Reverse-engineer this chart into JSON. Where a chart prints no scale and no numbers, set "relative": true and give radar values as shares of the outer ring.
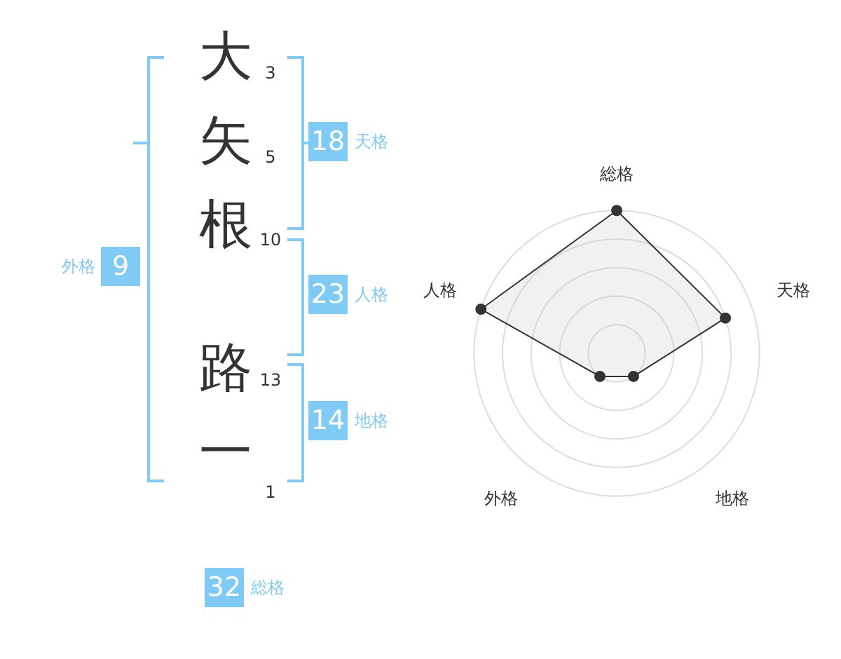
{
  "chart_data": [
    {
      "type": "other",
      "annotations": [
        "大",
        "3",
        "矢",
        "5",
        "根",
        "10",
        "路",
        "13",
        "一",
        "1",
        "18",
        "天格",
        "23",
        "人格",
        "14",
        "地格",
        "9",
        "外格",
        "32",
        "総格"
      ]
    },
    {
      "type": "radar",
      "relative": true,
      "categories": [
        "総格",
        "天格",
        "地格",
        "外格",
        "人格"
      ],
      "series": [
        {
          "color": "#333333",
          "values": [
            1,
            0.8,
            0.2,
            0.2,
            1
          ]
        }
      ],
      "grid": true,
      "legend": false,
      "marker": "circle"
    }
  ]
}
